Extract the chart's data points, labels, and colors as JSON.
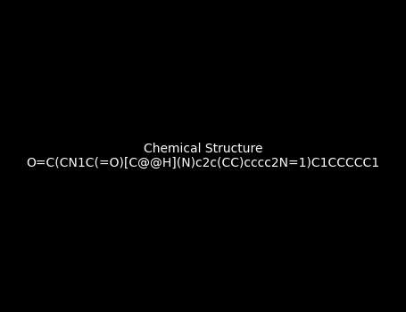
{
  "smiles": "O=C(CN1C(=O)[C@@H](N)c2c(CC)cccc2N=1)C1CCCCC1",
  "title": "",
  "bg_color": "#000000",
  "bond_color": "#ffffff",
  "atom_colors": {
    "N": "#0000cd",
    "O": "#ff0000",
    "C": "#ffffff"
  },
  "figsize": [
    4.55,
    3.5
  ],
  "dpi": 100
}
